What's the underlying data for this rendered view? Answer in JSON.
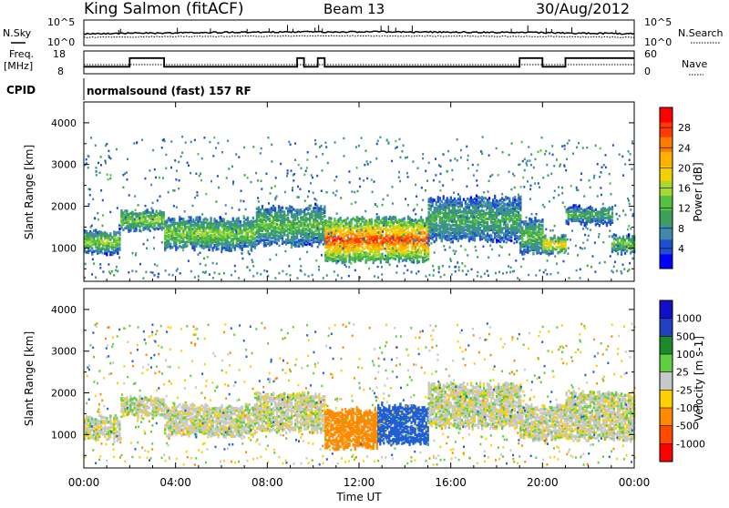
{
  "header": {
    "station": "King Salmon (fitACF)",
    "beam": "Beam 13",
    "date": "30/Aug/2012"
  },
  "side_labels": {
    "nsky": "N.Sky",
    "nsearch": "N.Search",
    "freq": "Freq.",
    "mhz": "[MHz]",
    "nave": "Nave",
    "cpid": "CPID"
  },
  "cpid_text": "normalsound (fast) 157 RF",
  "colors": {
    "power": [
      "#0000ff",
      "#1f4fd0",
      "#3f8aaa",
      "#3aa05a",
      "#56c040",
      "#a6d830",
      "#f4d000",
      "#ffb000",
      "#ff7a00",
      "#ff3a00",
      "#ff0000"
    ],
    "velocity_grey": "#c8c8c8"
  },
  "chart_data": [
    {
      "type": "line",
      "panel": "noise",
      "ylabels": [
        "10^5",
        "10^0"
      ],
      "right_ylabels": [
        "10^5",
        "10^0"
      ],
      "series": [
        {
          "name": "N.Sky"
        },
        {
          "name": "N.Search"
        }
      ]
    },
    {
      "type": "line",
      "panel": "frequency",
      "left_ticks": [
        "18",
        "8"
      ],
      "right_ticks": [
        "60",
        "0"
      ],
      "series": [
        {
          "name": "Freq.",
          "x": [
            0,
            2.0,
            2.0,
            3.5,
            3.5,
            9.3,
            9.3,
            9.6,
            9.6,
            10.2,
            10.2,
            10.5,
            10.5,
            19.0,
            19.0,
            20.0,
            20.0,
            21.0,
            21.0,
            24.0
          ],
          "y": [
            10.5,
            10.5,
            15.5,
            15.5,
            10.5,
            10.5,
            15.5,
            15.5,
            10.5,
            10.5,
            15.5,
            15.5,
            10.5,
            10.5,
            15.5,
            15.5,
            10.5,
            10.5,
            15.5,
            15.5
          ]
        }
      ]
    },
    {
      "type": "heatmap",
      "panel": "power",
      "ylabel": "Slant Range [km]",
      "yticks": [
        1000,
        2000,
        3000,
        4000
      ],
      "ylim": [
        200,
        4500
      ],
      "xlim": [
        0,
        24
      ],
      "colorbar_label": "Power [dB]",
      "colorbar_ticks": [
        4,
        8,
        12,
        16,
        20,
        24,
        28
      ],
      "colorbar_range": [
        0,
        32
      ],
      "echo_bands": [
        {
          "t0": 0.0,
          "t1": 1.6,
          "r0": 900,
          "r1": 1400,
          "db": 14
        },
        {
          "t0": 1.6,
          "t1": 3.5,
          "r0": 1450,
          "r1": 1900,
          "db": 14
        },
        {
          "t0": 3.5,
          "t1": 7.5,
          "r0": 1000,
          "r1": 1700,
          "db": 14
        },
        {
          "t0": 7.5,
          "t1": 10.5,
          "r0": 1100,
          "r1": 2000,
          "db": 12
        },
        {
          "t0": 10.5,
          "t1": 15.0,
          "r0": 700,
          "r1": 1700,
          "db": 26
        },
        {
          "t0": 15.0,
          "t1": 19.0,
          "r0": 1200,
          "r1": 2200,
          "db": 10
        },
        {
          "t0": 19.0,
          "t1": 20.0,
          "r0": 900,
          "r1": 1700,
          "db": 12
        },
        {
          "t0": 20.0,
          "t1": 21.0,
          "r0": 900,
          "r1": 1300,
          "db": 20
        },
        {
          "t0": 21.0,
          "t1": 23.0,
          "r0": 1600,
          "r1": 2000,
          "db": 10
        },
        {
          "t0": 23.0,
          "t1": 24.0,
          "r0": 900,
          "r1": 1300,
          "db": 14
        }
      ]
    },
    {
      "type": "heatmap",
      "panel": "velocity",
      "ylabel": "Slant Range [km]",
      "yticks": [
        1000,
        2000,
        3000,
        4000
      ],
      "ylim": [
        200,
        4500
      ],
      "xlim": [
        0,
        24
      ],
      "xticks": [
        "00:00",
        "04:00",
        "08:00",
        "12:00",
        "16:00",
        "20:00",
        "00:00"
      ],
      "xlabel": "Time UT",
      "colorbar_label": "Velocity [m s-1]",
      "colorbar_ticks": [
        1000,
        500,
        100,
        25,
        -25,
        -100,
        -500,
        -1000
      ],
      "echo_bands": [
        {
          "t0": 0.0,
          "t1": 1.6,
          "r0": 900,
          "r1": 1400,
          "v": 0
        },
        {
          "t0": 1.6,
          "t1": 3.5,
          "r0": 1450,
          "r1": 1900,
          "v": 0
        },
        {
          "t0": 3.5,
          "t1": 7.5,
          "r0": 1000,
          "r1": 1700,
          "v": 0
        },
        {
          "t0": 7.5,
          "t1": 10.5,
          "r0": 1100,
          "r1": 2000,
          "v": 0
        },
        {
          "t0": 10.5,
          "t1": 12.8,
          "r0": 700,
          "r1": 1600,
          "v": -200
        },
        {
          "t0": 12.8,
          "t1": 15.0,
          "r0": 800,
          "r1": 1700,
          "v": 150
        },
        {
          "t0": 15.0,
          "t1": 19.0,
          "r0": 1200,
          "r1": 2200,
          "v": 0
        },
        {
          "t0": 19.0,
          "t1": 21.0,
          "r0": 900,
          "r1": 1700,
          "v": 0
        },
        {
          "t0": 21.0,
          "t1": 24.0,
          "r0": 900,
          "r1": 2000,
          "v": 0
        }
      ]
    }
  ]
}
